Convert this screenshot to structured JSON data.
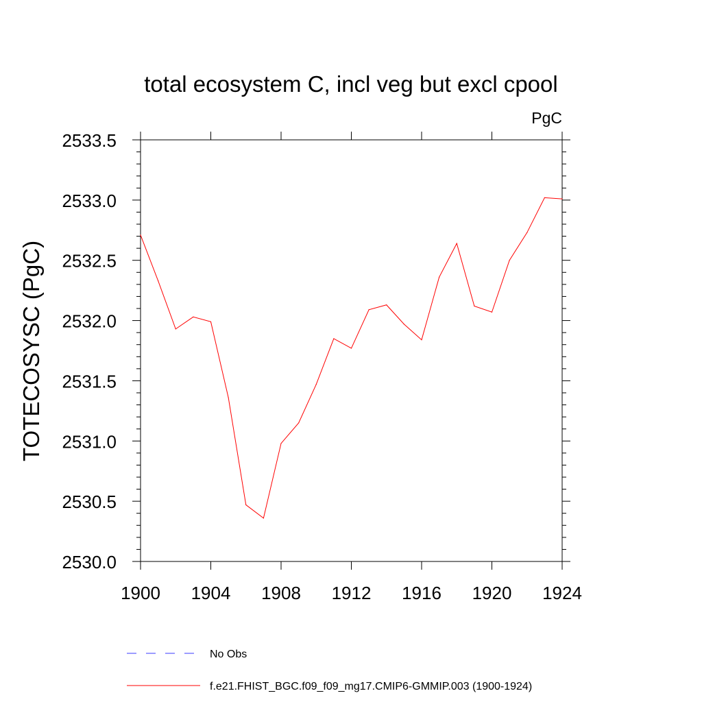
{
  "chart_data": {
    "type": "line",
    "title": "total ecosystem C, incl veg but excl cpool",
    "units_label": "PgC",
    "ylabel": "TOTECOSYSC  (PgC)",
    "xlabel": "",
    "xlim": [
      1900,
      1924
    ],
    "ylim": [
      2530.0,
      2533.5
    ],
    "x_ticks": [
      1900,
      1904,
      1908,
      1912,
      1916,
      1920,
      1924
    ],
    "x_tick_labels": [
      "1900",
      "1904",
      "1908",
      "1912",
      "1916",
      "1920",
      "1924"
    ],
    "y_ticks": [
      2530.0,
      2530.5,
      2531.0,
      2531.5,
      2532.0,
      2532.5,
      2533.0,
      2533.5
    ],
    "y_tick_labels": [
      "2530.0",
      "2530.5",
      "2531.0",
      "2531.5",
      "2532.0",
      "2532.5",
      "2533.0",
      "2533.5"
    ],
    "grid": false,
    "legend_position": "bottom",
    "series": [
      {
        "name": "f.e21.FHIST_BGC.f09_f09_mg17.CMIP6-GMMIP.003 (1900-1924)",
        "color": "#ff0000",
        "style": "solid",
        "x": [
          1900,
          1901,
          1902,
          1903,
          1904,
          1905,
          1906,
          1907,
          1908,
          1909,
          1910,
          1911,
          1912,
          1913,
          1914,
          1915,
          1916,
          1917,
          1918,
          1919,
          1920,
          1921,
          1922,
          1923,
          1924
        ],
        "values": [
          2532.71,
          2532.33,
          2531.93,
          2532.03,
          2531.99,
          2531.36,
          2530.47,
          2530.36,
          2530.98,
          2531.15,
          2531.47,
          2531.85,
          2531.77,
          2532.09,
          2532.13,
          2531.97,
          2531.84,
          2532.36,
          2532.64,
          2532.12,
          2532.07,
          2532.5,
          2532.73,
          2533.02,
          2533.01
        ]
      }
    ],
    "legend": [
      {
        "label": "No Obs",
        "color": "#3a3aff",
        "style": "dashed"
      },
      {
        "label": "f.e21.FHIST_BGC.f09_f09_mg17.CMIP6-GMMIP.003 (1900-1924)",
        "color": "#ff0000",
        "style": "solid"
      }
    ]
  }
}
